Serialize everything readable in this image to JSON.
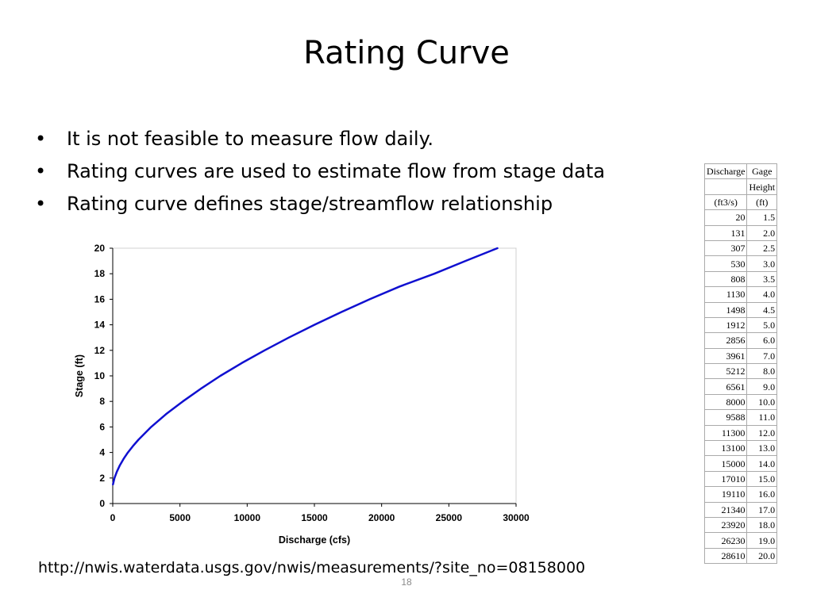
{
  "slide": {
    "title": "Rating Curve",
    "bullets": [
      "It is not feasible to measure flow daily.",
      "Rating curves are used to estimate flow from stage data",
      "Rating curve defines stage/streamflow relationship"
    ],
    "bullet_glyph": "•",
    "url": "http://nwis.waterdata.usgs.gov/nwis/measurements/?site_no=08158000",
    "page_number": "18"
  },
  "table": {
    "headers": [
      [
        "Discharge",
        "Gage"
      ],
      [
        "",
        "Height"
      ],
      [
        "(ft3/s)",
        "(ft)"
      ]
    ],
    "rows": [
      [
        "20",
        "1.5"
      ],
      [
        "131",
        "2.0"
      ],
      [
        "307",
        "2.5"
      ],
      [
        "530",
        "3.0"
      ],
      [
        "808",
        "3.5"
      ],
      [
        "1130",
        "4.0"
      ],
      [
        "1498",
        "4.5"
      ],
      [
        "1912",
        "5.0"
      ],
      [
        "2856",
        "6.0"
      ],
      [
        "3961",
        "7.0"
      ],
      [
        "5212",
        "8.0"
      ],
      [
        "6561",
        "9.0"
      ],
      [
        "8000",
        "10.0"
      ],
      [
        "9588",
        "11.0"
      ],
      [
        "11300",
        "12.0"
      ],
      [
        "13100",
        "13.0"
      ],
      [
        "15000",
        "14.0"
      ],
      [
        "17010",
        "15.0"
      ],
      [
        "19110",
        "16.0"
      ],
      [
        "21340",
        "17.0"
      ],
      [
        "23920",
        "18.0"
      ],
      [
        "26230",
        "19.0"
      ],
      [
        "28610",
        "20.0"
      ]
    ]
  },
  "chart_data": {
    "type": "line",
    "xlabel": "Discharge (cfs)",
    "ylabel": "Stage (ft)",
    "xlim": [
      0,
      30000
    ],
    "ylim": [
      0,
      20
    ],
    "xticks": [
      0,
      5000,
      10000,
      15000,
      20000,
      25000,
      30000
    ],
    "yticks": [
      0,
      2,
      4,
      6,
      8,
      10,
      12,
      14,
      16,
      18,
      20
    ],
    "grid": false,
    "line_color": "#1010d0",
    "series": [
      {
        "x": [
          20,
          131,
          307,
          530,
          808,
          1130,
          1498,
          1912,
          2856,
          3961,
          5212,
          6561,
          8000,
          9588,
          11300,
          13100,
          15000,
          17010,
          19110,
          21340,
          23920,
          26230,
          28610
        ],
        "y": [
          1.5,
          2.0,
          2.5,
          3.0,
          3.5,
          4.0,
          4.5,
          5.0,
          6.0,
          7.0,
          8.0,
          9.0,
          10.0,
          11.0,
          12.0,
          13.0,
          14.0,
          15.0,
          16.0,
          17.0,
          18.0,
          19.0,
          20.0
        ]
      }
    ]
  }
}
